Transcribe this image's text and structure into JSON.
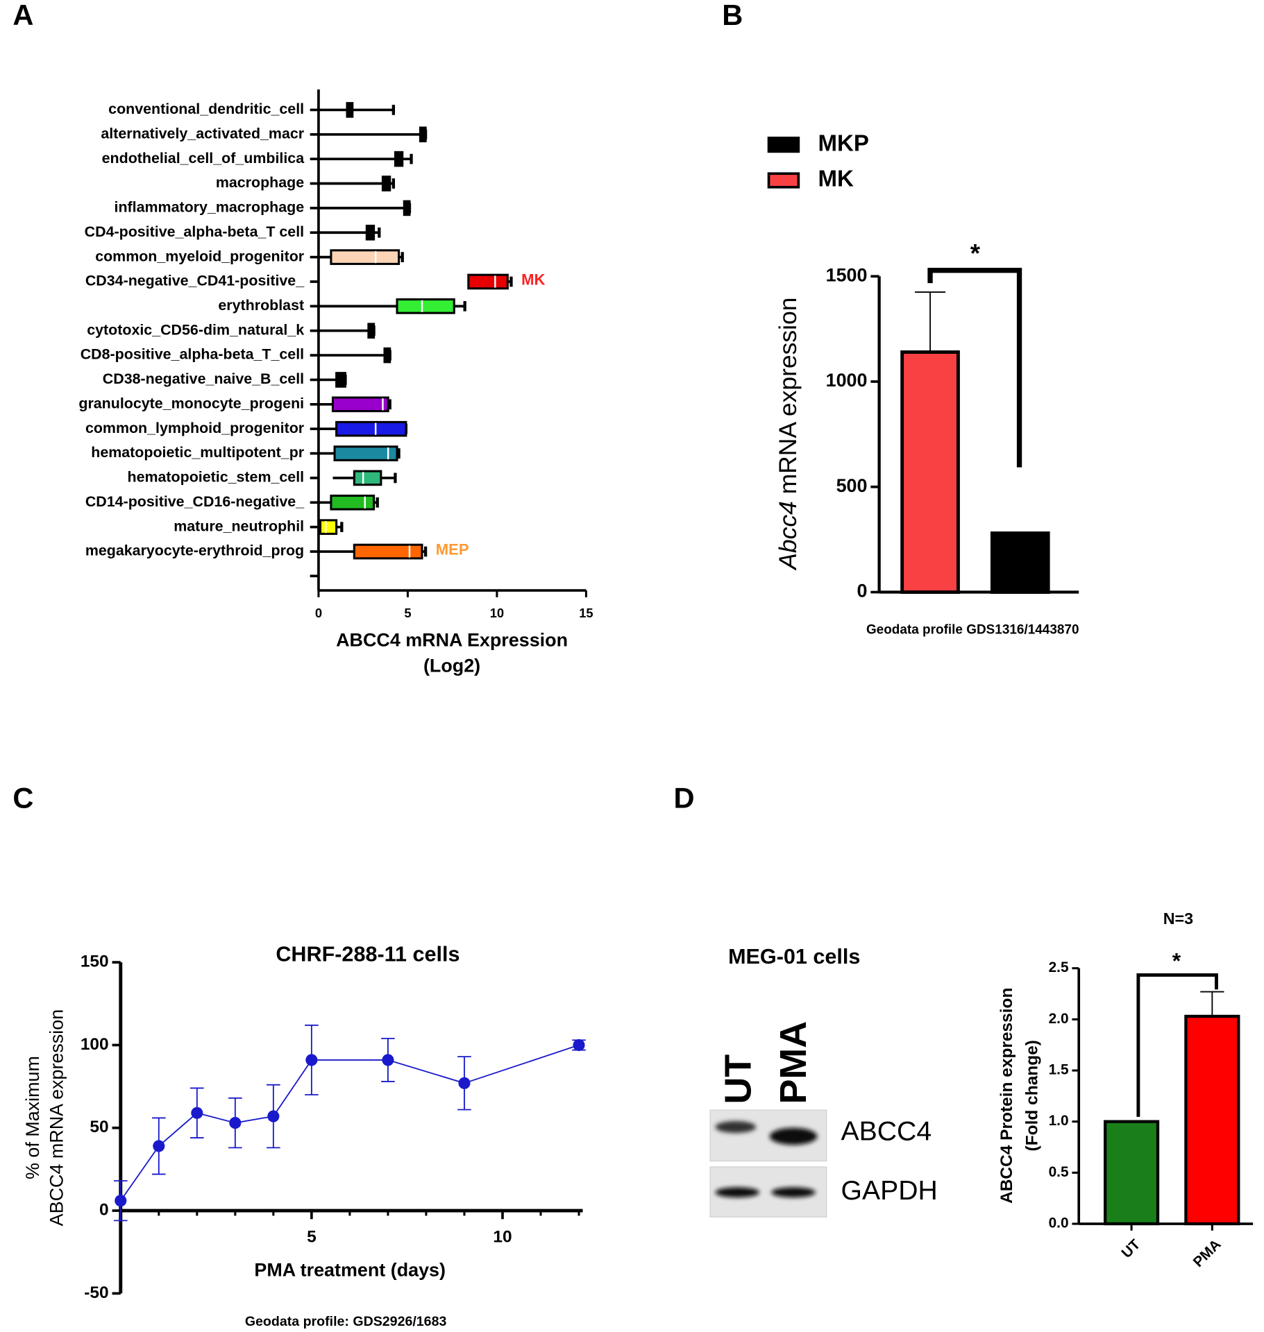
{
  "panel_labels": [
    "A",
    "B",
    "C",
    "D"
  ],
  "chart_data": [
    {
      "type": "boxplot",
      "categories": [
        "conventional_dendritic_cell",
        "alternatively_activated_macr",
        "endothelial_cell_of_umbilica",
        "macrophage",
        "inflammatory_macrophage",
        "CD4-positive_alpha-beta_T cell",
        "common_myeloid_progenitor",
        "CD34-negative_CD41-positive_",
        "erythroblast",
        "cytotoxic_CD56-dim_natural_k",
        "CD8-positive_alpha-beta_T_cell",
        "CD38-negative_naive_B_cell",
        "granulocyte_monocyte_progeni",
        "common_lymphoid_progenitor",
        "hematopoietic_multipotent_pr",
        "hematopoietic_stem_cell",
        "CD14-positive_CD16-negative_",
        "mature_neutrophil",
        "megakaryocyte-erythroid_prog"
      ],
      "boxes": [
        {
          "min": 0,
          "q1": 1.6,
          "median": 1.7,
          "q3": 1.9,
          "max": 4.2
        },
        {
          "min": 0,
          "q1": 5.7,
          "median": 5.9,
          "q3": 6.0,
          "max": 6.0
        },
        {
          "min": 0,
          "q1": 4.3,
          "median": 4.5,
          "q3": 4.7,
          "max": 5.2
        },
        {
          "min": 0,
          "q1": 3.6,
          "median": 3.8,
          "q3": 4.0,
          "max": 4.2
        },
        {
          "min": 0,
          "q1": 4.8,
          "median": 5.0,
          "q3": 5.1,
          "max": 5.1
        },
        {
          "min": 0,
          "q1": 2.7,
          "median": 2.9,
          "q3": 3.1,
          "max": 3.4
        },
        {
          "min": 0,
          "q1": 0.7,
          "median": 3.2,
          "q3": 4.5,
          "max": 4.7
        },
        {
          "min": 8.4,
          "q1": 8.4,
          "median": 9.9,
          "q3": 10.6,
          "max": 10.8
        },
        {
          "min": 0,
          "q1": 4.4,
          "median": 5.8,
          "q3": 7.6,
          "max": 8.2
        },
        {
          "min": 0,
          "q1": 2.8,
          "median": 3.0,
          "q3": 3.1,
          "max": 3.1
        },
        {
          "min": 0,
          "q1": 3.7,
          "median": 3.9,
          "q3": 4.0,
          "max": 4.0
        },
        {
          "min": 0,
          "q1": 1.0,
          "median": 1.2,
          "q3": 1.5,
          "max": 1.5
        },
        {
          "min": 0,
          "q1": 0.8,
          "median": 3.6,
          "q3": 3.9,
          "max": 4.0
        },
        {
          "min": 0,
          "q1": 1.0,
          "median": 3.2,
          "q3": 4.9,
          "max": 4.9
        },
        {
          "min": 0,
          "q1": 0.9,
          "median": 3.9,
          "q3": 4.4,
          "max": 4.5
        },
        {
          "min": 0.8,
          "q1": 2.0,
          "median": 2.5,
          "q3": 3.5,
          "max": 4.3
        },
        {
          "min": 0,
          "q1": 0.7,
          "median": 2.6,
          "q3": 3.1,
          "max": 3.3
        },
        {
          "min": 0,
          "q1": 0.1,
          "median": 0.4,
          "q3": 1.0,
          "max": 1.3
        },
        {
          "min": 0,
          "q1": 2.0,
          "median": 5.1,
          "q3": 5.8,
          "max": 6.0
        }
      ],
      "colors": [
        "#000000",
        "#000000",
        "#000000",
        "#000000",
        "#000000",
        "#000000",
        "#fbd5b5",
        "#e60000",
        "#33ee33",
        "#000000",
        "#000000",
        "#000000",
        "#9900cc",
        "#1a1ae6",
        "#1a8aa0",
        "#2eb87a",
        "#22bb22",
        "#ffff00",
        "#ff6600"
      ],
      "annotations": [
        {
          "text": "MK",
          "category": "CD34-negative_CD41-positive_",
          "color": "#ff2020"
        },
        {
          "text": "MEP",
          "category": "megakaryocyte-erythroid_prog",
          "color": "#ff9933"
        }
      ],
      "xlim": [
        0,
        15
      ],
      "xticks": [
        0,
        5,
        10,
        15
      ],
      "xlabel": [
        "ABCC4 mRNA Expression",
        "(Log2)"
      ]
    },
    {
      "type": "bar",
      "series": [
        {
          "name": "MKP",
          "color": "#000000",
          "values": [
            280
          ],
          "errors": [
            3
          ]
        },
        {
          "name": "MK",
          "color": "#f94144",
          "values": [
            1140
          ],
          "errors": [
            285
          ]
        }
      ],
      "ylim": [
        0,
        1500
      ],
      "yticks": [
        0,
        500,
        1000,
        1500
      ],
      "ylabel": [
        "Abcc4",
        "mRNA expression"
      ],
      "xlabel": "Geodata profile GDS1316/1443870",
      "significance": "*"
    },
    {
      "type": "line",
      "title": "CHRF-288-11 cells",
      "x": [
        0,
        1,
        2,
        3,
        4,
        5,
        7,
        9,
        12
      ],
      "y": [
        6,
        39,
        59,
        53,
        57,
        91,
        91,
        77,
        100
      ],
      "errors": [
        12,
        17,
        15,
        15,
        19,
        21,
        13,
        16,
        3
      ],
      "color": "#1a1acc",
      "xlim": [
        0,
        12.1
      ],
      "xticks": [
        5,
        10
      ],
      "xminorticks": [
        1,
        2,
        3,
        4,
        6,
        7,
        8,
        9,
        11,
        12
      ],
      "ylim": [
        -50,
        150
      ],
      "yticks": [
        -50,
        0,
        50,
        100,
        150
      ],
      "xlabel": "PMA treatment (days)",
      "ylabel": [
        "% of Maximum",
        "ABCC4 mRNA expression"
      ],
      "note": "Geodata profile: GDS2926/1683"
    },
    {
      "type": "bar",
      "title": "N=3",
      "categories": [
        "UT",
        "PMA"
      ],
      "values": [
        1.0,
        2.03
      ],
      "errors": [
        0.005,
        0.24
      ],
      "colors": [
        "#1a7f1a",
        "#ff0000"
      ],
      "ylim": [
        0,
        2.5
      ],
      "yticks": [
        {
          "value": 0,
          "label": "0.0"
        },
        0.5,
        {
          "value": 1,
          "label": "1.0"
        },
        1.5,
        {
          "value": 2,
          "label": "2.0"
        },
        2.5
      ],
      "ylabel": [
        "ABCC4 Protein expression",
        "(Fold change)"
      ],
      "significance": "*"
    }
  ],
  "blot": {
    "title": "MEG-01 cells",
    "lanes": [
      "UT",
      "PMA"
    ],
    "bands": [
      "ABCC4",
      "GAPDH"
    ]
  }
}
